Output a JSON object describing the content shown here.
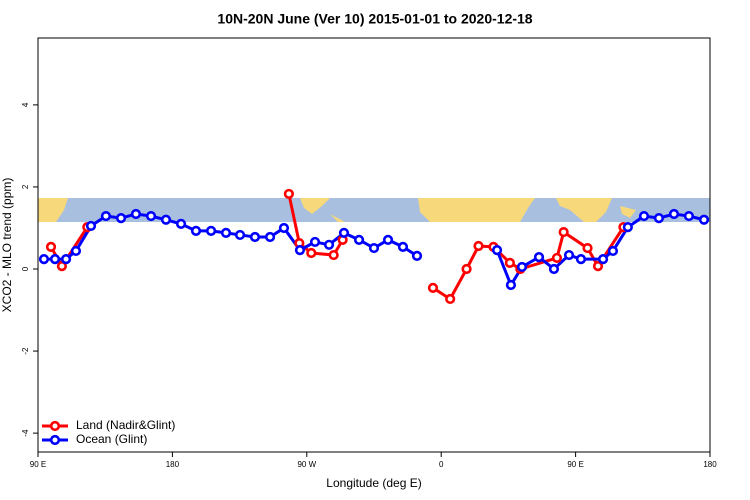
{
  "chart_data": {
    "type": "line",
    "title": "10N-20N June (Ver 10)   2015-01-01 to 2020-12-18",
    "x_label": "Longitude (deg E)",
    "y_label": "XCO2 - MLO trend (ppm)",
    "xlim": [
      90,
      540
    ],
    "xticks": [
      {
        "value": 90,
        "label": "90 E"
      },
      180,
      {
        "value": 270,
        "label": "90 W"
      },
      {
        "value": 360,
        "label": "0"
      },
      {
        "value": 450,
        "label": "90 E"
      },
      {
        "value": 540,
        "label": "180"
      }
    ],
    "ylim": [
      -4.46,
      5.63
    ],
    "yticks": [
      -4,
      -2,
      0,
      2,
      4
    ],
    "legend": "bottom-left",
    "series": [
      {
        "name": "Land (Nadir&Glint)",
        "color": "#ff0000",
        "x": [
          98.7,
          106,
          123,
          null,
          258,
          265,
          273,
          288,
          294,
          null,
          354.5,
          366,
          377,
          385,
          395,
          406,
          413,
          437.5,
          442,
          458,
          465,
          482
        ],
        "values": [
          0.54,
          0.07,
          1.02,
          null,
          1.83,
          0.63,
          0.39,
          0.34,
          0.71,
          null,
          -0.46,
          -0.73,
          0.0,
          0.56,
          0.54,
          0.15,
          0.0,
          0.27,
          0.9,
          0.51,
          0.07,
          1.02
        ]
      },
      {
        "name": "Ocean (Glint)",
        "color": "#0000ff",
        "x": [
          94,
          101.4,
          108.8,
          115.4,
          125.5,
          135.5,
          145.6,
          155.6,
          165.7,
          175.7,
          185.8,
          195.8,
          205.9,
          215.9,
          225.3,
          235.3,
          245.4,
          254.7,
          265.4,
          275.5,
          284.9,
          294.9,
          305,
          315,
          324.4,
          334.4,
          343.8,
          null,
          397.4,
          406.7,
          414.1,
          425.5,
          435.5,
          445.6,
          453.6,
          468.4,
          475,
          485,
          495.8,
          505.8,
          515.9,
          525.9,
          536
        ],
        "values": [
          0.24,
          0.24,
          0.24,
          0.44,
          1.05,
          1.29,
          1.24,
          1.34,
          1.29,
          1.2,
          1.1,
          0.93,
          0.93,
          0.88,
          0.83,
          0.78,
          0.78,
          1.0,
          0.46,
          0.66,
          0.59,
          0.88,
          0.71,
          0.51,
          0.71,
          0.54,
          0.32,
          null,
          0.46,
          -0.39,
          0.05,
          0.29,
          0.0,
          0.34,
          0.24,
          0.24,
          0.44,
          1.02,
          1.29,
          1.24,
          1.34,
          1.29,
          1.2
        ]
      }
    ]
  }
}
